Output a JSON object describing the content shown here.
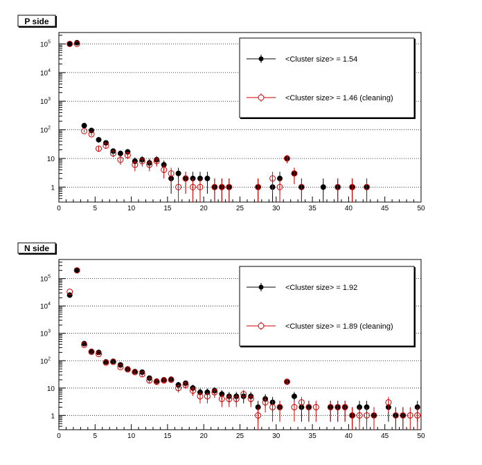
{
  "chart_data": [
    {
      "type": "scatter",
      "title": "P side",
      "xlabel": "",
      "ylabel": "",
      "xlim": [
        0,
        50
      ],
      "ylim": [
        0.3,
        250000
      ],
      "yscale": "log",
      "grid": "horizontal-dotted",
      "xticks": [
        "0",
        "5",
        "10",
        "15",
        "20",
        "25",
        "30",
        "35",
        "40",
        "45",
        "50"
      ],
      "yticks": [
        {
          "base": "1",
          "exp": ""
        },
        {
          "base": "10",
          "exp": ""
        },
        {
          "base": "10",
          "exp": "2"
        },
        {
          "base": "10",
          "exp": "3"
        },
        {
          "base": "10",
          "exp": "4"
        },
        {
          "base": "10",
          "exp": "5"
        }
      ],
      "legend_position": "top-right",
      "series": [
        {
          "name": "<Cluster size> =  1.54",
          "color": "#000000",
          "marker": "filled-circle",
          "points": [
            [
              1.5,
              100000
            ],
            [
              2.5,
              110000
            ],
            [
              3.5,
              140
            ],
            [
              4.5,
              95
            ],
            [
              5.5,
              45
            ],
            [
              6.5,
              35
            ],
            [
              7.5,
              18
            ],
            [
              8.5,
              15
            ],
            [
              9.5,
              17
            ],
            [
              10.5,
              8
            ],
            [
              11.5,
              9
            ],
            [
              12.5,
              7
            ],
            [
              13.5,
              9
            ],
            [
              14.5,
              6
            ],
            [
              15.5,
              2
            ],
            [
              16.5,
              3
            ],
            [
              17.5,
              2
            ],
            [
              18.5,
              2
            ],
            [
              19.5,
              2
            ],
            [
              20.5,
              2
            ],
            [
              21.5,
              1
            ],
            [
              22.5,
              1
            ],
            [
              23.5,
              1
            ],
            [
              27.5,
              1
            ],
            [
              29.5,
              1
            ],
            [
              30.5,
              2
            ],
            [
              31.5,
              10
            ],
            [
              32.5,
              3
            ],
            [
              33.5,
              1
            ],
            [
              36.5,
              1
            ],
            [
              38.5,
              1
            ],
            [
              40.5,
              1
            ],
            [
              42.5,
              1
            ]
          ]
        },
        {
          "name": "<Cluster size> =  1.46 (cleaning)",
          "color": "#cc0000",
          "marker": "open-circle",
          "points": [
            [
              1.5,
              100000
            ],
            [
              2.5,
              100000
            ],
            [
              3.5,
              90
            ],
            [
              4.5,
              70
            ],
            [
              5.5,
              22
            ],
            [
              6.5,
              28
            ],
            [
              7.5,
              15
            ],
            [
              8.5,
              9
            ],
            [
              9.5,
              13
            ],
            [
              10.5,
              6
            ],
            [
              11.5,
              8
            ],
            [
              12.5,
              6
            ],
            [
              13.5,
              8
            ],
            [
              14.5,
              4
            ],
            [
              15.5,
              3
            ],
            [
              16.5,
              1
            ],
            [
              17.5,
              2
            ],
            [
              18.5,
              1
            ],
            [
              19.5,
              1
            ],
            [
              21.5,
              1
            ],
            [
              22.5,
              1
            ],
            [
              23.5,
              1
            ],
            [
              27.5,
              1
            ],
            [
              29.5,
              2
            ],
            [
              30.5,
              1
            ],
            [
              31.5,
              10
            ],
            [
              32.5,
              3
            ],
            [
              33.5,
              1
            ],
            [
              38.5,
              1
            ],
            [
              40.5,
              1
            ],
            [
              42.5,
              1
            ]
          ]
        }
      ]
    },
    {
      "type": "scatter",
      "title": "N side",
      "xlabel": "",
      "ylabel": "",
      "xlim": [
        0,
        50
      ],
      "ylim": [
        0.3,
        500000
      ],
      "yscale": "log",
      "grid": "horizontal-dotted",
      "xticks": [
        "0",
        "5",
        "10",
        "15",
        "20",
        "25",
        "30",
        "35",
        "40",
        "45",
        "50"
      ],
      "yticks": [
        {
          "base": "1",
          "exp": ""
        },
        {
          "base": "10",
          "exp": ""
        },
        {
          "base": "10",
          "exp": "2"
        },
        {
          "base": "10",
          "exp": "3"
        },
        {
          "base": "10",
          "exp": "4"
        },
        {
          "base": "10",
          "exp": "5"
        }
      ],
      "legend_position": "top-right",
      "series": [
        {
          "name": "<Cluster size> =  1.92",
          "color": "#000000",
          "marker": "filled-circle",
          "points": [
            [
              1.5,
              25000
            ],
            [
              2.5,
              200000
            ],
            [
              3.5,
              420
            ],
            [
              4.5,
              220
            ],
            [
              5.5,
              200
            ],
            [
              6.5,
              90
            ],
            [
              7.5,
              95
            ],
            [
              8.5,
              70
            ],
            [
              9.5,
              50
            ],
            [
              10.5,
              40
            ],
            [
              11.5,
              38
            ],
            [
              12.5,
              23
            ],
            [
              13.5,
              18
            ],
            [
              14.5,
              20
            ],
            [
              15.5,
              21
            ],
            [
              16.5,
              13
            ],
            [
              17.5,
              15
            ],
            [
              18.5,
              10
            ],
            [
              19.5,
              7
            ],
            [
              20.5,
              7
            ],
            [
              21.5,
              8
            ],
            [
              22.5,
              6
            ],
            [
              23.5,
              5
            ],
            [
              24.5,
              5
            ],
            [
              25.5,
              5
            ],
            [
              26.5,
              5
            ],
            [
              27.5,
              2
            ],
            [
              28.5,
              4
            ],
            [
              29.5,
              3
            ],
            [
              30.5,
              2
            ],
            [
              31.5,
              17
            ],
            [
              32.5,
              5
            ],
            [
              33.5,
              2
            ],
            [
              34.5,
              2
            ],
            [
              37.5,
              2
            ],
            [
              38.5,
              2
            ],
            [
              39.5,
              2
            ],
            [
              40.5,
              1
            ],
            [
              41.5,
              2
            ],
            [
              42.5,
              2
            ],
            [
              43.5,
              1
            ],
            [
              45.5,
              2
            ],
            [
              46.5,
              1
            ],
            [
              47.5,
              1
            ],
            [
              49.5,
              2
            ]
          ]
        },
        {
          "name": "<Cluster size> =  1.89 (cleaning)",
          "color": "#cc0000",
          "marker": "open-circle",
          "points": [
            [
              1.5,
              33000
            ],
            [
              2.5,
              200000
            ],
            [
              3.5,
              380
            ],
            [
              4.5,
              210
            ],
            [
              5.5,
              175
            ],
            [
              6.5,
              85
            ],
            [
              7.5,
              90
            ],
            [
              8.5,
              58
            ],
            [
              9.5,
              48
            ],
            [
              10.5,
              38
            ],
            [
              11.5,
              32
            ],
            [
              12.5,
              19
            ],
            [
              13.5,
              17
            ],
            [
              14.5,
              19
            ],
            [
              15.5,
              20
            ],
            [
              16.5,
              10
            ],
            [
              17.5,
              13
            ],
            [
              18.5,
              8
            ],
            [
              19.5,
              5
            ],
            [
              20.5,
              5
            ],
            [
              21.5,
              7
            ],
            [
              22.5,
              4
            ],
            [
              23.5,
              4
            ],
            [
              24.5,
              4
            ],
            [
              25.5,
              6
            ],
            [
              26.5,
              4
            ],
            [
              27.5,
              1
            ],
            [
              28.5,
              3
            ],
            [
              29.5,
              2
            ],
            [
              30.5,
              2
            ],
            [
              31.5,
              17
            ],
            [
              32.5,
              2
            ],
            [
              33.5,
              3
            ],
            [
              34.5,
              2
            ],
            [
              35.5,
              2
            ],
            [
              37.5,
              2
            ],
            [
              38.5,
              2
            ],
            [
              39.5,
              2
            ],
            [
              40.5,
              1
            ],
            [
              41.5,
              1
            ],
            [
              42.5,
              1
            ],
            [
              43.5,
              1
            ],
            [
              45.5,
              3
            ],
            [
              46.5,
              1
            ],
            [
              47.5,
              1
            ],
            [
              48.5,
              1
            ],
            [
              49.5,
              1
            ]
          ]
        }
      ]
    }
  ]
}
